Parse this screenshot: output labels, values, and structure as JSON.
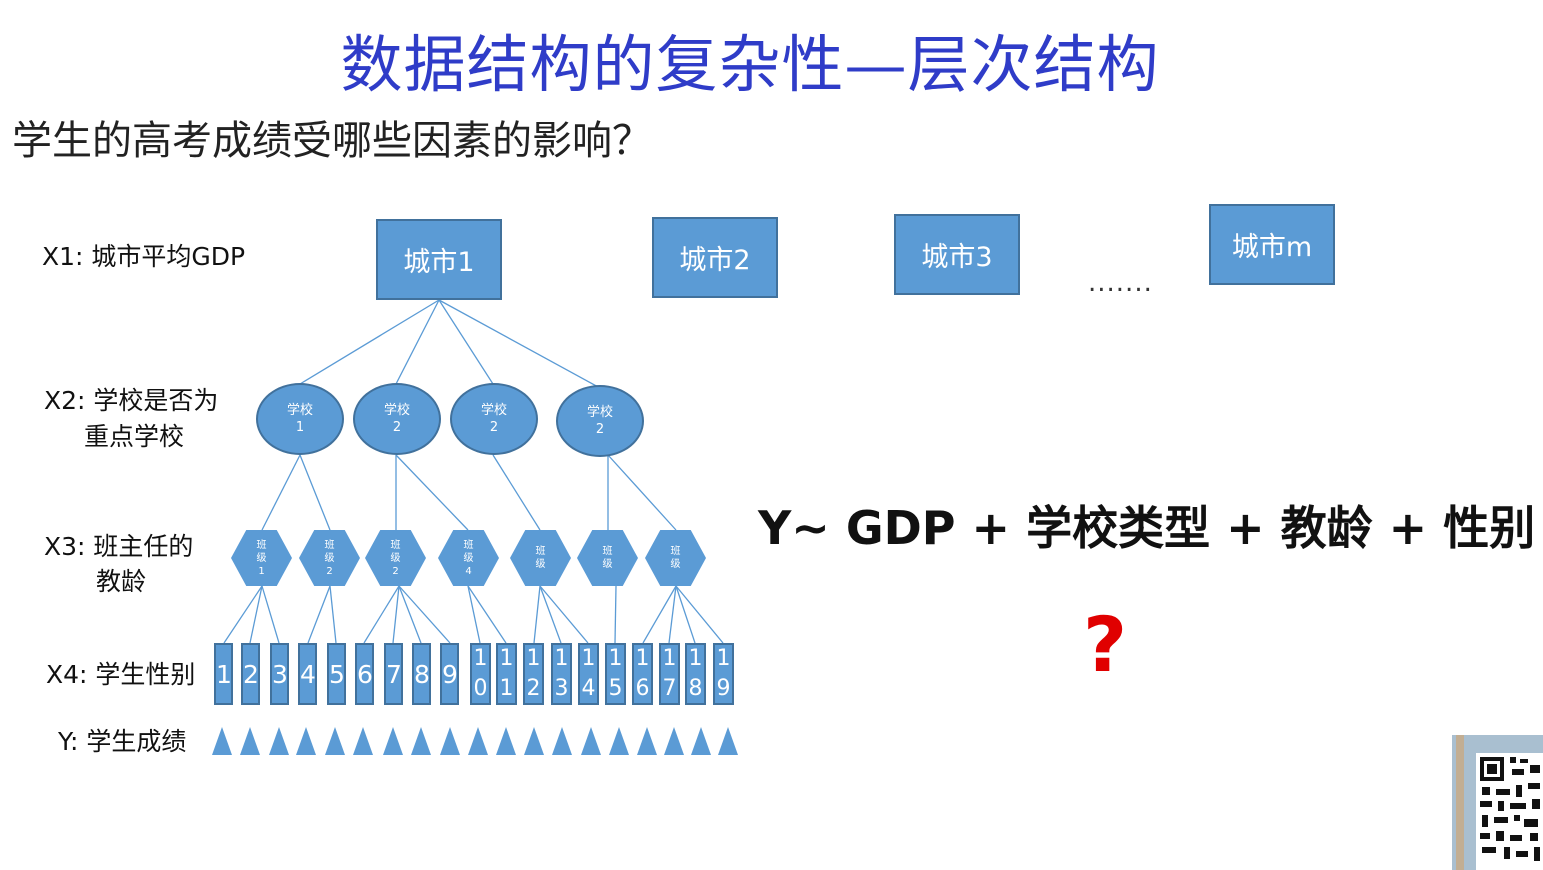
{
  "title": "数据结构的复杂性—层次结构",
  "question": "学生的高考成绩受哪些因素的影响？",
  "labels": {
    "x1": "X1: 城市平均GDP",
    "x2_line1": "X2: 学校是否为",
    "x2_line2": "重点学校",
    "x3_line1": "X3: 班主任的",
    "x3_line2": "教龄",
    "x4": "X4: 学生性别",
    "y": "Y: 学生成绩"
  },
  "cities": [
    "城市1",
    "城市2",
    "城市3",
    "城市m"
  ],
  "ellipsis": ".......",
  "schools": [
    {
      "name": "学校",
      "num": "1"
    },
    {
      "name": "学校",
      "num": "2"
    },
    {
      "name": "学校",
      "num": "2"
    },
    {
      "name": "学校",
      "num": "2"
    }
  ],
  "classes": [
    {
      "l1": "班",
      "l2": "级",
      "num": "1"
    },
    {
      "l1": "班",
      "l2": "级",
      "num": "2"
    },
    {
      "l1": "班",
      "l2": "级",
      "num": "2"
    },
    {
      "l1": "班",
      "l2": "级",
      "num": "4"
    },
    {
      "l1": "班",
      "l2": "级",
      "num": ""
    },
    {
      "l1": "班",
      "l2": "级",
      "num": ""
    },
    {
      "l1": "班",
      "l2": "级",
      "num": ""
    }
  ],
  "students": [
    "1",
    "2",
    "3",
    "4",
    "5",
    "6",
    "7",
    "8",
    "9",
    "10",
    "11",
    "12",
    "13",
    "14",
    "15",
    "16",
    "17",
    "18",
    "19"
  ],
  "formula": "Y~ GDP + 学校类型 + 教龄 + 性别",
  "question_mark": "?",
  "colors": {
    "node_fill": "#5b9bd5",
    "node_border": "#41719c",
    "title": "#2f3cc8",
    "question_mark": "#e00000"
  },
  "icons": [
    "qr-code-icon"
  ]
}
